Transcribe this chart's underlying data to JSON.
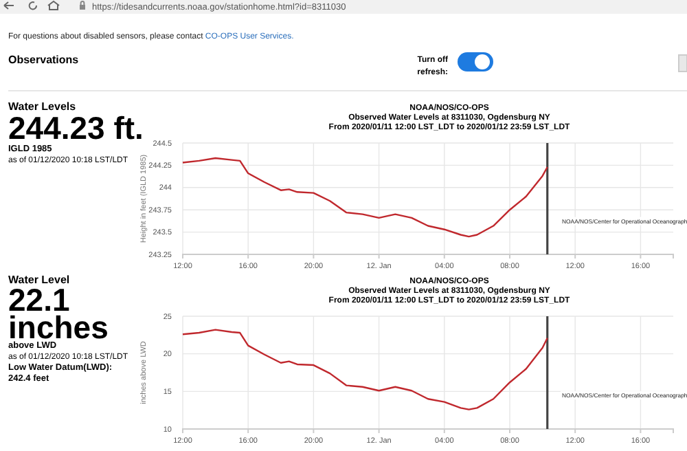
{
  "chart_data": [
    {
      "type": "other",
      "title": "Observations",
      "annotations": [
        "https://tidesandcurrents.noaa.gov/stationhome.html?id=8311030",
        "For questions about disabled sensors, please contact",
        "CO-OPS User Services.",
        "Turn off",
        "refresh:"
      ]
    },
    {
      "type": "line",
      "title": "NOAA/NOS/CO-OPS",
      "subtitle": "Observed Water Levels at 8311030, Ogdensburg NY",
      "ylabel": "Height in feet (IGLD 1985)",
      "annotations": [
        "From 2020/01/11 12:00 LST_LDT to 2020/01/12 23:59 LST_LDT",
        "Water Levels",
        "244.23 ft.",
        "IGLD 1985",
        "as of 01/12/2020 10:18 LST/LDT",
        "NOAA/NOS/Center for Operational Oceanograph"
      ],
      "x": [
        "2020-01-11T12:00",
        "2020-01-11T13:00",
        "2020-01-11T14:00",
        "2020-01-11T15:00",
        "2020-01-11T15:30",
        "2020-01-11T16:00",
        "2020-01-11T17:00",
        "2020-01-11T18:00",
        "2020-01-11T18:30",
        "2020-01-11T19:00",
        "2020-01-11T20:00",
        "2020-01-11T21:00",
        "2020-01-11T22:00",
        "2020-01-11T23:00",
        "2020-01-12T00:00",
        "2020-01-12T01:00",
        "2020-01-12T02:00",
        "2020-01-12T03:00",
        "2020-01-12T04:00",
        "2020-01-12T05:00",
        "2020-01-12T05:30",
        "2020-01-12T06:00",
        "2020-01-12T07:00",
        "2020-01-12T08:00",
        "2020-01-12T09:00",
        "2020-01-12T10:00",
        "2020-01-12T10:18"
      ],
      "values": [
        244.28,
        244.3,
        244.33,
        244.31,
        244.3,
        244.16,
        244.06,
        243.97,
        243.98,
        243.95,
        243.94,
        243.85,
        243.72,
        243.7,
        243.66,
        243.7,
        243.66,
        243.57,
        243.53,
        243.47,
        243.45,
        243.47,
        243.57,
        243.75,
        243.9,
        244.13,
        244.23
      ],
      "color": "#c0282d",
      "xlim": [
        "2020-01-11T12:00",
        "2020-01-12T18:00"
      ],
      "xticks": [
        {
          "value": "2020-01-11T12:00",
          "label": "12:00"
        },
        {
          "value": "2020-01-11T16:00",
          "label": "16:00"
        },
        {
          "value": "2020-01-11T20:00",
          "label": "20:00"
        },
        {
          "value": "2020-01-12T00:00",
          "label": "12. Jan"
        },
        {
          "value": "2020-01-12T04:00",
          "label": "04:00"
        },
        {
          "value": "2020-01-12T08:00",
          "label": "08:00"
        },
        {
          "value": "2020-01-12T12:00",
          "label": "12:00"
        },
        {
          "value": "2020-01-12T16:00",
          "label": "16:00"
        }
      ],
      "ylim": [
        243.25,
        244.5
      ],
      "yticks": [
        243.25,
        243.5,
        243.75,
        244,
        244.25,
        244.5
      ],
      "grid": true,
      "ref_lines": [
        {
          "axis": "x",
          "value": "2020-01-12T10:18",
          "color": "#444444"
        }
      ]
    },
    {
      "type": "line",
      "title": "NOAA/NOS/CO-OPS",
      "subtitle": "Observed Water Levels at 8311030, Ogdensburg NY",
      "ylabel": "inches above LWD",
      "annotations": [
        "From 2020/01/11 12:00 LST_LDT to 2020/01/12 23:59 LST_LDT",
        "Water Level",
        "22.1",
        "inches",
        "above LWD",
        "as of 01/12/2020 10:18 LST/LDT",
        "Low Water Datum(LWD):",
        "242.4 feet",
        "NOAA/NOS/Center for Operational Oceanograph"
      ],
      "x": [
        "2020-01-11T12:00",
        "2020-01-11T13:00",
        "2020-01-11T14:00",
        "2020-01-11T15:00",
        "2020-01-11T15:30",
        "2020-01-11T16:00",
        "2020-01-11T17:00",
        "2020-01-11T18:00",
        "2020-01-11T18:30",
        "2020-01-11T19:00",
        "2020-01-11T20:00",
        "2020-01-11T21:00",
        "2020-01-11T22:00",
        "2020-01-11T23:00",
        "2020-01-12T00:00",
        "2020-01-12T01:00",
        "2020-01-12T02:00",
        "2020-01-12T03:00",
        "2020-01-12T04:00",
        "2020-01-12T05:00",
        "2020-01-12T05:30",
        "2020-01-12T06:00",
        "2020-01-12T07:00",
        "2020-01-12T08:00",
        "2020-01-12T09:00",
        "2020-01-12T10:00",
        "2020-01-12T10:18"
      ],
      "values": [
        22.6,
        22.8,
        23.2,
        22.9,
        22.8,
        21.1,
        19.9,
        18.8,
        19.0,
        18.6,
        18.5,
        17.4,
        15.8,
        15.6,
        15.1,
        15.6,
        15.1,
        14.0,
        13.6,
        12.8,
        12.6,
        12.8,
        14.0,
        16.2,
        18.0,
        20.8,
        22.1
      ],
      "color": "#c0282d",
      "xlim": [
        "2020-01-11T12:00",
        "2020-01-12T18:00"
      ],
      "xticks": [
        {
          "value": "2020-01-11T12:00",
          "label": "12:00"
        },
        {
          "value": "2020-01-11T16:00",
          "label": "16:00"
        },
        {
          "value": "2020-01-11T20:00",
          "label": "20:00"
        },
        {
          "value": "2020-01-12T00:00",
          "label": "12. Jan"
        },
        {
          "value": "2020-01-12T04:00",
          "label": "04:00"
        },
        {
          "value": "2020-01-12T08:00",
          "label": "08:00"
        },
        {
          "value": "2020-01-12T12:00",
          "label": "12:00"
        },
        {
          "value": "2020-01-12T16:00",
          "label": "16:00"
        }
      ],
      "ylim": [
        10,
        25
      ],
      "yticks": [
        10,
        15,
        20,
        25
      ],
      "grid": true,
      "ref_lines": [
        {
          "axis": "x",
          "value": "2020-01-12T10:18",
          "color": "#444444"
        }
      ]
    }
  ]
}
